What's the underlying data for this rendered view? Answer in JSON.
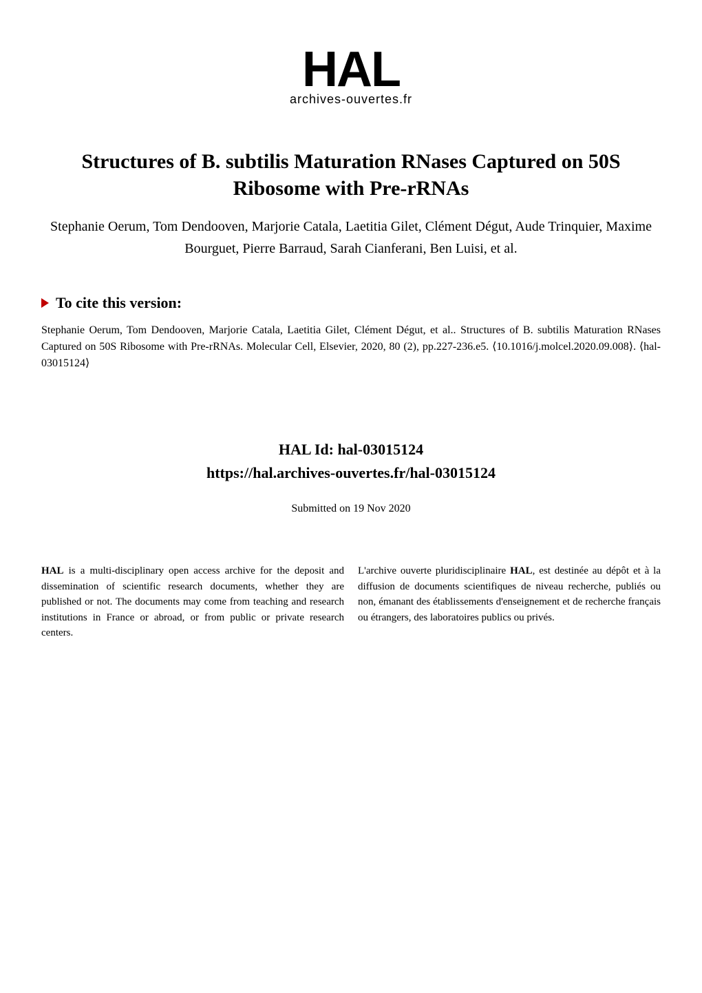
{
  "logo": {
    "main_text": "HAL",
    "subtitle": "archives-ouvertes.fr",
    "text_color": "#000000"
  },
  "title": "Structures of B. subtilis Maturation RNases Captured on 50S Ribosome with Pre-rRNAs",
  "authors": "Stephanie Oerum, Tom Dendooven, Marjorie Catala, Laetitia Gilet, Clément Dégut, Aude Trinquier, Maxime Bourguet, Pierre Barraud, Sarah Cianferani, Ben Luisi, et al.",
  "cite": {
    "header": "To cite this version:",
    "triangle_color": "#c00000",
    "text": "Stephanie Oerum, Tom Dendooven, Marjorie Catala, Laetitia Gilet, Clément Dégut, et al.. Structures of B. subtilis Maturation RNases Captured on 50S Ribosome with Pre-rRNAs. Molecular Cell, Elsevier, 2020, 80 (2), pp.227-236.e5. ⟨10.1016/j.molcel.2020.09.008⟩. ⟨hal-03015124⟩"
  },
  "hal_id": {
    "label": "HAL Id: hal-03015124",
    "url": "https://hal.archives-ouvertes.fr/hal-03015124"
  },
  "submitted": "Submitted on 19 Nov 2020",
  "description": {
    "left_bold": "HAL",
    "left_text": " is a multi-disciplinary open access archive for the deposit and dissemination of scientific research documents, whether they are published or not. The documents may come from teaching and research institutions in France or abroad, or from public or private research centers.",
    "right_prefix": "L'archive ouverte pluridisciplinaire ",
    "right_bold": "HAL",
    "right_text": ", est destinée au dépôt et à la diffusion de documents scientifiques de niveau recherche, publiés ou non, émanant des établissements d'enseignement et de recherche français ou étrangers, des laboratoires publics ou privés."
  },
  "styling": {
    "background_color": "#ffffff",
    "text_color": "#000000",
    "title_fontsize": 30,
    "authors_fontsize": 20,
    "cite_header_fontsize": 22,
    "citation_fontsize": 16,
    "hal_id_fontsize": 22,
    "description_fontsize": 15,
    "logo_fontsize": 72
  }
}
